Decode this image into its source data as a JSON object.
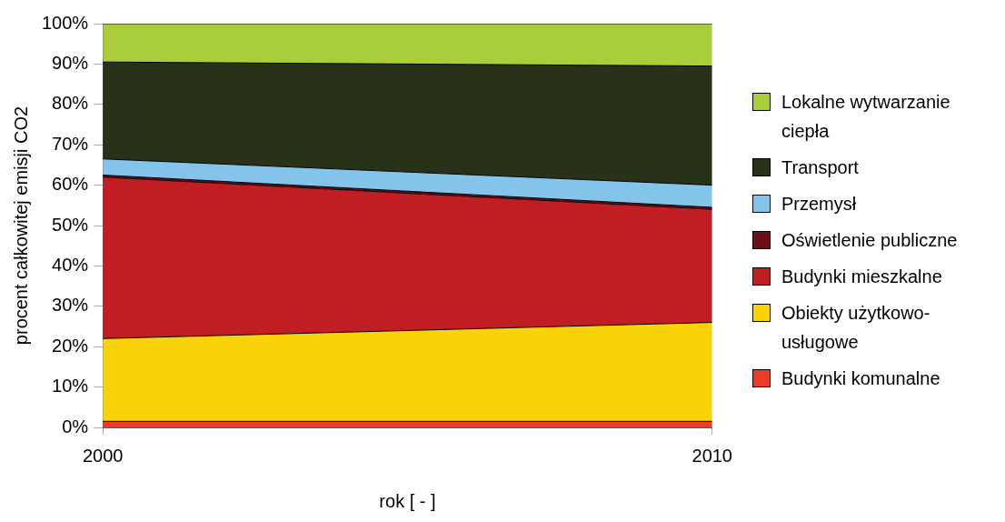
{
  "chart_data": {
    "type": "area",
    "stacked": true,
    "xlabel": "rok [ - ]",
    "ylabel": "procent całkowitej emisji CO2",
    "x": [
      2000,
      2010
    ],
    "xlim": [
      2000,
      2010
    ],
    "xticks": [
      2000,
      2010
    ],
    "ylim": [
      0,
      100
    ],
    "yticks": [
      {
        "value": 0,
        "label": "0%"
      },
      {
        "value": 10,
        "label": "10%"
      },
      {
        "value": 20,
        "label": "20%"
      },
      {
        "value": 30,
        "label": "30%"
      },
      {
        "value": 40,
        "label": "40%"
      },
      {
        "value": 50,
        "label": "50%"
      },
      {
        "value": 60,
        "label": "60%"
      },
      {
        "value": 70,
        "label": "70%"
      },
      {
        "value": 80,
        "label": "80%"
      },
      {
        "value": 90,
        "label": "90%"
      },
      {
        "value": 100,
        "label": "100%"
      }
    ],
    "grid": false,
    "legend": "right",
    "series": [
      {
        "name": "Budynki komunalne",
        "color": "#ee3b24",
        "values": [
          1.5,
          1.5
        ]
      },
      {
        "name": "Obiekty użytkowo-usługowe",
        "color": "#fad20a",
        "values": [
          20.5,
          24.5
        ]
      },
      {
        "name": "Budynki mieszkalne",
        "color": "#c11e24",
        "values": [
          40,
          28
        ]
      },
      {
        "name": "Oświetlenie publiczne",
        "color": "#6e0f17",
        "values": [
          0.5,
          0.5
        ]
      },
      {
        "name": "Przemysł",
        "color": "#85c4ea",
        "values": [
          4,
          5.5
        ]
      },
      {
        "name": "Transport",
        "color": "#283219",
        "values": [
          24,
          29.5
        ]
      },
      {
        "name": "Lokalne wytwarzanie ciepła",
        "color": "#aacd3a",
        "values": [
          9.5,
          10.5
        ]
      }
    ]
  }
}
